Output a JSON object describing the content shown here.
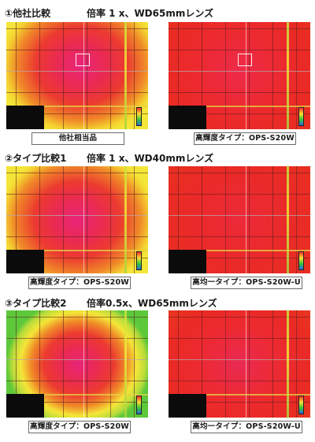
{
  "sections": [
    {
      "title": "①他社比較",
      "condition": "倍率 1 x、WD65mmレンズ",
      "panels": [
        {
          "caption": "他社相当品",
          "variant": "competitor"
        },
        {
          "caption": "高輝度タイプ：OPS-S20W",
          "variant": "high-bright"
        }
      ]
    },
    {
      "title": "②タイプ比較1",
      "condition": "倍率 1 x、WD40mmレンズ",
      "panels": [
        {
          "caption": "高輝度タイプ：OPS-S20W",
          "variant": "high-bright"
        },
        {
          "caption": "高均一タイプ：OPS-S20W-U",
          "variant": "uniform"
        }
      ]
    },
    {
      "title": "③タイプ比較2",
      "condition": "倍率0.5x、WD65mmレンズ",
      "panels": [
        {
          "caption": "高輝度タイプ：OPS-S20W",
          "variant": "wide-falloff"
        },
        {
          "caption": "高均一タイプ：OPS-S20W-U",
          "variant": "uniform"
        }
      ]
    }
  ],
  "colors": {
    "hot_center": "#e8257a",
    "red": "#e81e1e",
    "yellow": "#f4e638",
    "green": "#5cc83a"
  }
}
